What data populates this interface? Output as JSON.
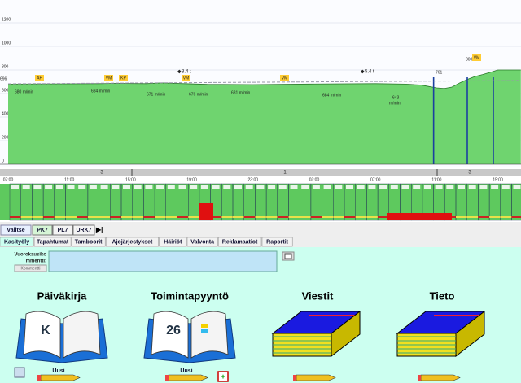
{
  "chart": {
    "ylim": [
      0,
      1200
    ],
    "yticks": [
      0,
      200,
      400,
      600,
      800,
      1000,
      1200
    ],
    "time_labels": [
      "07:00",
      "11:00",
      "15:00",
      "19:00",
      "23:00",
      "03:00",
      "07:00",
      "11:00",
      "15:00"
    ],
    "shift_labels": [
      "3",
      "1",
      "3"
    ],
    "speed": {
      "hours": [
        0,
        3,
        6,
        7,
        9,
        10,
        13,
        16,
        20,
        24,
        26,
        27,
        27.5,
        28,
        28.5,
        29,
        29.5,
        30,
        30.5,
        31,
        31.5,
        32,
        33.5
      ],
      "values": [
        680,
        682,
        684,
        686,
        684,
        690,
        678,
        676,
        681,
        684,
        680,
        672,
        660,
        648,
        643,
        655,
        690,
        720,
        745,
        761,
        780,
        800,
        800
      ]
    },
    "stop_hours": [
      27.8,
      30,
      31.7
    ],
    "tags": [
      "AP",
      "VM",
      "KP",
      "VM",
      "VM",
      "VM"
    ],
    "tonnes": [
      "8.4 t",
      "5.4 t"
    ],
    "speed_labels": [
      "680 m/min",
      "684 m/min",
      "671 m/min",
      "676 m/min",
      "681 m/min",
      "684 m/min",
      "643",
      "m/min",
      "761",
      "800",
      "696"
    ]
  },
  "toolbar": {
    "buttons": [
      "Valitse",
      "PK7",
      "PL7",
      "URK7"
    ]
  },
  "tabs": [
    "Kasityöly",
    "Tapahtumat",
    "Tamboorit",
    "Ajojärjestykset",
    "Häiriöt",
    "Valvonta",
    "Reklamaatiot",
    "Raportit"
  ],
  "comment": {
    "label_lines": [
      "Vuorokausiko",
      "mmentti:"
    ],
    "button": "Kommentti"
  },
  "items": [
    {
      "title": "Päiväkirja",
      "icon_text": "K",
      "new": "Uusi"
    },
    {
      "title": "Toimintapyyntö",
      "icon_text": "26",
      "new": "Uusi"
    },
    {
      "title": "Viestit"
    },
    {
      "title": "Tieto"
    }
  ]
}
